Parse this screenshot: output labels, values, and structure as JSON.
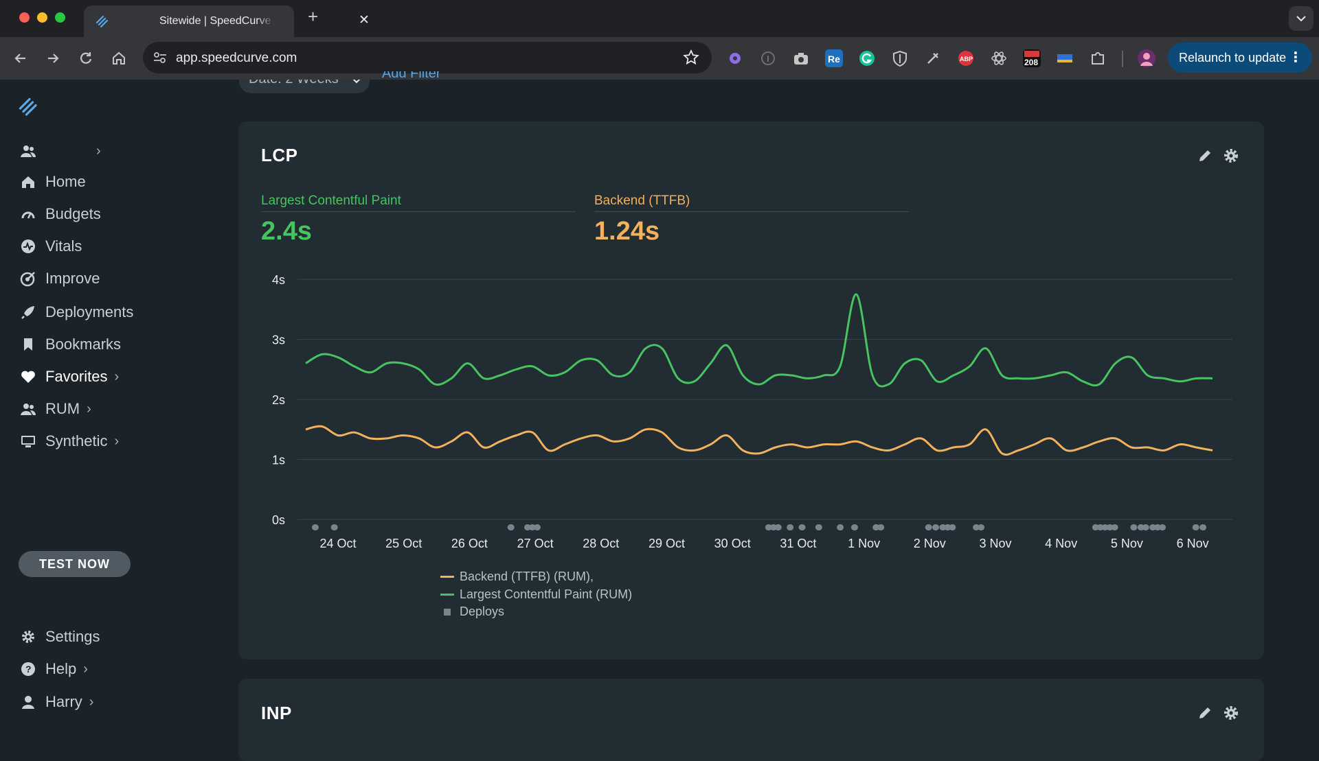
{
  "browser": {
    "tab_title": "Sitewide | SpeedCurve",
    "url": "app.speedcurve.com",
    "relaunch_label": "Relaunch to update",
    "ext_badge": "208",
    "new_tab_glyph": "+",
    "close_glyph": "✕"
  },
  "sidebar": {
    "items": [
      {
        "label": "Home",
        "icon": "home-icon"
      },
      {
        "label": "Budgets",
        "icon": "gauge-icon"
      },
      {
        "label": "Vitals",
        "icon": "heartbeat-icon"
      },
      {
        "label": "Improve",
        "icon": "target-icon"
      },
      {
        "label": "Deployments",
        "icon": "rocket-icon"
      },
      {
        "label": "Bookmarks",
        "icon": "bookmark-icon"
      },
      {
        "label": "Favorites",
        "icon": "heart-icon"
      },
      {
        "label": "RUM",
        "icon": "users-icon"
      },
      {
        "label": "Synthetic",
        "icon": "monitor-icon"
      }
    ],
    "test_now": "TEST NOW",
    "bottom": [
      {
        "label": "Settings",
        "icon": "gear-icon"
      },
      {
        "label": "Help",
        "icon": "help-icon"
      },
      {
        "label": "Harry",
        "icon": "user-icon"
      }
    ],
    "chevron": "›"
  },
  "filter": {
    "date_label": "Date: 2 Weeks",
    "add_filter": "Add Filter"
  },
  "lcp_card": {
    "title": "LCP",
    "metrics": [
      {
        "label": "Largest Contentful Paint",
        "value": "2.4s"
      },
      {
        "label": "Backend (TTFB)",
        "value": "1.24s"
      }
    ],
    "legend": {
      "ttfb": "Backend (TTFB) (RUM),",
      "lcp": "Largest Contentful Paint (RUM)",
      "deploys": "Deploys"
    }
  },
  "inp_card": {
    "title": "INP"
  },
  "colors": {
    "lcp": "#47c45f",
    "ttfb": "#f2b15b",
    "deploy": "#7a848c",
    "accent": "#0b4a79"
  },
  "chart_data": {
    "type": "line",
    "x_labels": [
      "24 Oct",
      "25 Oct",
      "26 Oct",
      "27 Oct",
      "28 Oct",
      "29 Oct",
      "30 Oct",
      "31 Oct",
      "1 Nov",
      "2 Nov",
      "3 Nov",
      "4 Nov",
      "5 Nov",
      "6 Nov"
    ],
    "y_ticks": [
      "0s",
      "1s",
      "2s",
      "3s",
      "4s"
    ],
    "ylim": [
      0,
      4
    ],
    "grid": true,
    "legend_position": "bottom-left",
    "series": [
      {
        "name": "Largest Contentful Paint (RUM)",
        "color": "#47c45f",
        "values": [
          2.6,
          2.75,
          2.7,
          2.55,
          2.45,
          2.6,
          2.6,
          2.5,
          2.25,
          2.35,
          2.6,
          2.35,
          2.4,
          2.5,
          2.55,
          2.4,
          2.45,
          2.65,
          2.65,
          2.4,
          2.45,
          2.85,
          2.85,
          2.35,
          2.3,
          2.6,
          2.9,
          2.4,
          2.25,
          2.4,
          2.4,
          2.35,
          2.4,
          2.55,
          3.75,
          2.4,
          2.25,
          2.6,
          2.65,
          2.3,
          2.4,
          2.55,
          2.85,
          2.4,
          2.35,
          2.35,
          2.4,
          2.45,
          2.3,
          2.25,
          2.6,
          2.7,
          2.4,
          2.35,
          2.3,
          2.35,
          2.35
        ]
      },
      {
        "name": "Backend (TTFB) (RUM)",
        "color": "#f2b15b",
        "values": [
          1.5,
          1.55,
          1.4,
          1.45,
          1.35,
          1.35,
          1.4,
          1.35,
          1.2,
          1.3,
          1.45,
          1.2,
          1.3,
          1.4,
          1.45,
          1.15,
          1.25,
          1.35,
          1.4,
          1.3,
          1.35,
          1.5,
          1.45,
          1.2,
          1.15,
          1.25,
          1.4,
          1.15,
          1.1,
          1.2,
          1.25,
          1.2,
          1.25,
          1.25,
          1.3,
          1.2,
          1.15,
          1.25,
          1.35,
          1.15,
          1.2,
          1.25,
          1.5,
          1.1,
          1.15,
          1.25,
          1.35,
          1.15,
          1.2,
          1.3,
          1.35,
          1.2,
          1.2,
          1.15,
          1.25,
          1.2,
          1.15
        ]
      }
    ],
    "deploy_markers": [
      0.2,
      0.6,
      4.3,
      4.65,
      4.75,
      4.85,
      9.7,
      9.8,
      9.9,
      10.15,
      10.4,
      10.75,
      11.2,
      11.5,
      11.95,
      12.05,
      13.05,
      13.2,
      13.35,
      13.45,
      13.55,
      14.05,
      14.15,
      16.55,
      16.65,
      16.75,
      16.85,
      16.95,
      17.35,
      17.5,
      17.6,
      17.75,
      17.85,
      17.95,
      18.65,
      18.8
    ]
  }
}
